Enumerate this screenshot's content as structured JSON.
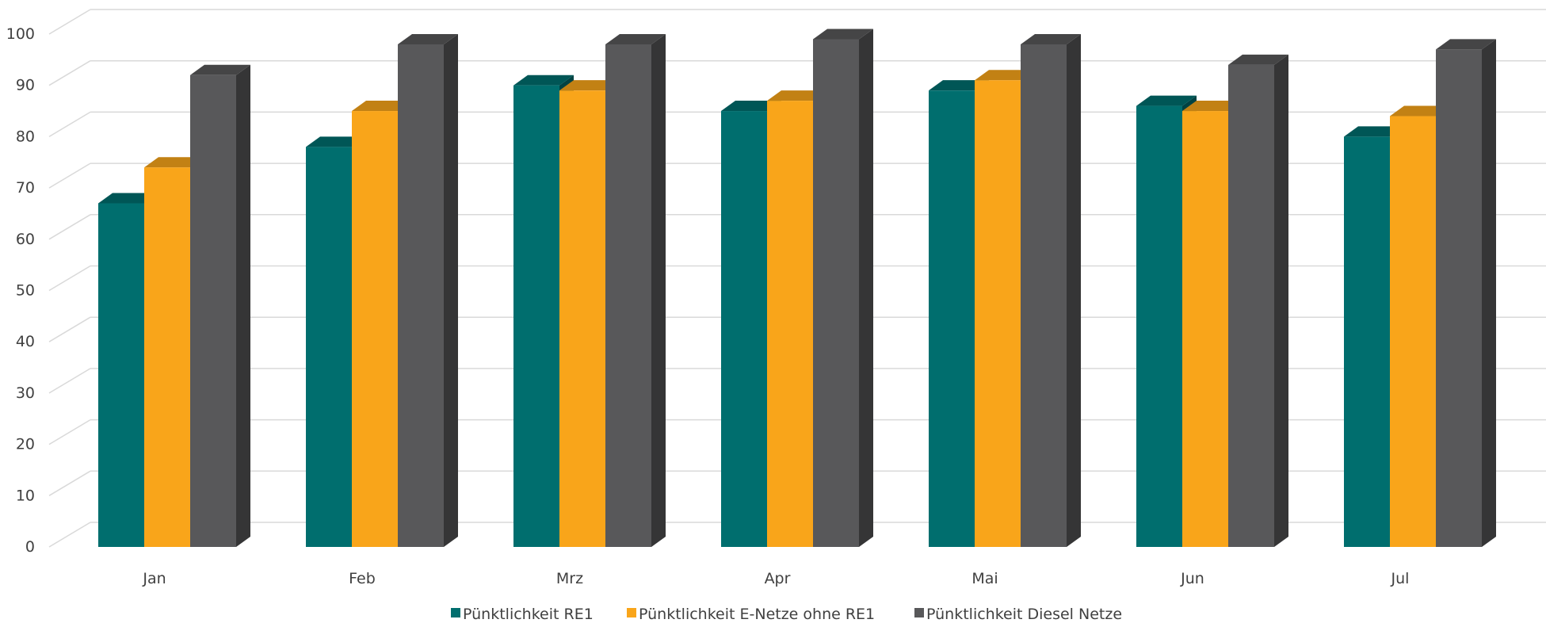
{
  "chart_data": {
    "type": "bar",
    "bar_style": "3d-clustered",
    "categories": [
      "Jan",
      "Feb",
      "Mrz",
      "Apr",
      "Mai",
      "Jun",
      "Jul"
    ],
    "series": [
      {
        "name": "Pünktlichkeit RE1",
        "color": "#006E6E",
        "values": [
          67,
          78,
          90,
          85,
          89,
          86,
          80
        ]
      },
      {
        "name": "Pünktlichkeit E-Netze ohne RE1",
        "color": "#F9A51A",
        "values": [
          74,
          85,
          89,
          87,
          91,
          85,
          84
        ]
      },
      {
        "name": "Pünktlichkeit Diesel Netze",
        "color": "#58585A",
        "values": [
          92,
          98,
          98,
          99,
          98,
          94,
          97
        ]
      }
    ],
    "y_ticks": [
      "0",
      "10",
      "20",
      "30",
      "40",
      "50",
      "60",
      "70",
      "80",
      "90",
      "100"
    ],
    "ylim": [
      0,
      100
    ],
    "grid": true,
    "legend_position": "bottom"
  }
}
